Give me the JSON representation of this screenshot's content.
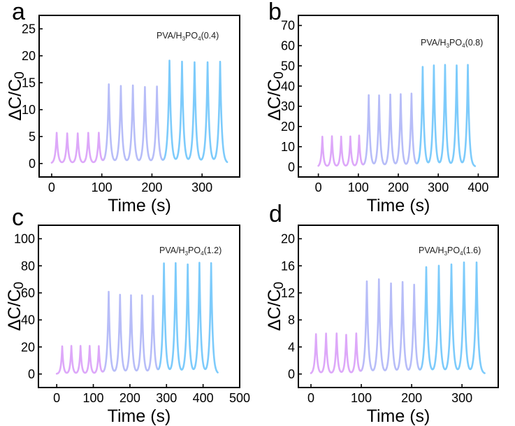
{
  "figure": {
    "description": "Four panels (a-d) of relative capacitance change vs time under cyclic loading, PVA/H3PO4 electrolytes"
  },
  "chart_data": [
    {
      "panel": "a",
      "type": "line",
      "title": "",
      "annotation": {
        "prefix": "PVA/H",
        "sub1": "3",
        "mid": "PO",
        "sub2": "4",
        "suffix": "(0.4)",
        "full": "PVA/H3PO4(0.4)"
      },
      "xlabel": "Time (s)",
      "ylabel": "ΔC/C0",
      "ylabel_main": "ΔC/C",
      "ylabel_sub": "0",
      "xlim": [
        -25,
        375
      ],
      "ylim": [
        -2.5,
        27.5
      ],
      "xticks": [
        0,
        100,
        200,
        300
      ],
      "yticks": [
        0,
        5,
        10,
        15,
        20,
        25
      ],
      "grid": false,
      "legend": null,
      "x_start": 0,
      "x_end": 350,
      "series": [
        {
          "name": "stage-1",
          "color": "#DDA8F9",
          "peak_times": [
            10,
            31,
            52,
            73,
            94
          ],
          "peak_values": [
            5.7,
            5.6,
            5.6,
            5.7,
            5.7
          ]
        },
        {
          "name": "stage-2",
          "color": "#B7BDF8",
          "peak_times": [
            114,
            138,
            162,
            186,
            210
          ],
          "peak_values": [
            14.7,
            14.4,
            14.5,
            14.2,
            14.3
          ]
        },
        {
          "name": "stage-3",
          "color": "#7DCBFB",
          "peak_times": [
            235,
            260,
            285,
            311,
            336
          ],
          "peak_values": [
            19.1,
            18.9,
            18.8,
            18.8,
            18.9
          ]
        }
      ]
    },
    {
      "panel": "b",
      "type": "line",
      "title": "",
      "annotation": {
        "prefix": "PVA/H",
        "sub1": "3",
        "mid": "PO",
        "sub2": "4",
        "suffix": "(0.8)",
        "full": "PVA/H3PO4(0.8)"
      },
      "xlabel": "Time (s)",
      "ylabel": "ΔC/C0",
      "ylabel_main": "ΔC/C",
      "ylabel_sub": "0",
      "xlim": [
        -50,
        450
      ],
      "ylim": [
        -5,
        75
      ],
      "xticks": [
        0,
        100,
        200,
        300,
        400
      ],
      "yticks": [
        0,
        10,
        20,
        30,
        40,
        50,
        60,
        70
      ],
      "grid": false,
      "legend": null,
      "x_start": 0,
      "x_end": 392,
      "series": [
        {
          "name": "stage-1",
          "color": "#DDA8F9",
          "peak_times": [
            10,
            34,
            57,
            80,
            102
          ],
          "peak_values": [
            15.0,
            15.2,
            15.0,
            15.1,
            15.5
          ]
        },
        {
          "name": "stage-2",
          "color": "#B7BDF8",
          "peak_times": [
            126,
            152,
            180,
            206,
            233
          ],
          "peak_values": [
            35.5,
            35.4,
            35.8,
            36.0,
            36.3
          ]
        },
        {
          "name": "stage-3",
          "color": "#7DCBFB",
          "peak_times": [
            261,
            289,
            317,
            346,
            374
          ],
          "peak_values": [
            49.5,
            50.2,
            50.5,
            50.2,
            50.5
          ]
        }
      ]
    },
    {
      "panel": "c",
      "type": "line",
      "title": "",
      "annotation": {
        "prefix": "PVA/H",
        "sub1": "3",
        "mid": "PO",
        "sub2": "4",
        "suffix": "(1.2)",
        "full": "PVA/H3PO4(1.2)"
      },
      "xlabel": "Time (s)",
      "ylabel": "ΔC/C0",
      "ylabel_main": "ΔC/C",
      "ylabel_sub": "0",
      "xlim": [
        -50,
        500
      ],
      "ylim": [
        -10,
        110
      ],
      "xticks": [
        0,
        100,
        200,
        300,
        400,
        500
      ],
      "yticks": [
        0,
        20,
        40,
        60,
        80,
        100
      ],
      "grid": false,
      "legend": null,
      "x_start": 0,
      "x_end": 440,
      "series": [
        {
          "name": "stage-1",
          "color": "#DDA8F9",
          "peak_times": [
            15,
            40,
            65,
            90,
            115
          ],
          "peak_values": [
            20.5,
            20.8,
            20.8,
            20.8,
            20.6
          ]
        },
        {
          "name": "stage-2",
          "color": "#B7BDF8",
          "peak_times": [
            142,
            173,
            203,
            233,
            263
          ],
          "peak_values": [
            60.8,
            58.6,
            58.2,
            58.2,
            57.8
          ]
        },
        {
          "name": "stage-3",
          "color": "#7DCBFB",
          "peak_times": [
            293,
            325,
            358,
            390,
            422
          ],
          "peak_values": [
            81.8,
            82.0,
            81.0,
            82.2,
            82.0
          ]
        }
      ]
    },
    {
      "panel": "d",
      "type": "line",
      "title": "",
      "annotation": {
        "prefix": "PVA/H",
        "sub1": "3",
        "mid": "PO",
        "sub2": "4",
        "suffix": "(1.6)",
        "full": "PVA/H3PO4(1.6)"
      },
      "xlabel": "Time (s)",
      "ylabel": "ΔC/C0",
      "ylabel_main": "ΔC/C",
      "ylabel_sub": "0",
      "xlim": [
        -25,
        372
      ],
      "ylim": [
        -2,
        22
      ],
      "xticks": [
        0,
        100,
        200,
        300
      ],
      "yticks": [
        0,
        4,
        8,
        12,
        16,
        20
      ],
      "grid": false,
      "legend": null,
      "x_start": 0,
      "x_end": 345,
      "series": [
        {
          "name": "stage-1",
          "color": "#DDA8F9",
          "peak_times": [
            10,
            30,
            51,
            70,
            90
          ],
          "peak_values": [
            5.9,
            6.0,
            6.0,
            5.8,
            6.0
          ]
        },
        {
          "name": "stage-2",
          "color": "#B7BDF8",
          "peak_times": [
            111,
            135,
            159,
            182,
            205
          ],
          "peak_values": [
            13.7,
            14.0,
            13.4,
            13.6,
            13.2
          ]
        },
        {
          "name": "stage-3",
          "color": "#7DCBFB",
          "peak_times": [
            229,
            254,
            279,
            304,
            329
          ],
          "peak_values": [
            15.8,
            16.0,
            16.2,
            16.5,
            16.5
          ]
        }
      ]
    }
  ]
}
